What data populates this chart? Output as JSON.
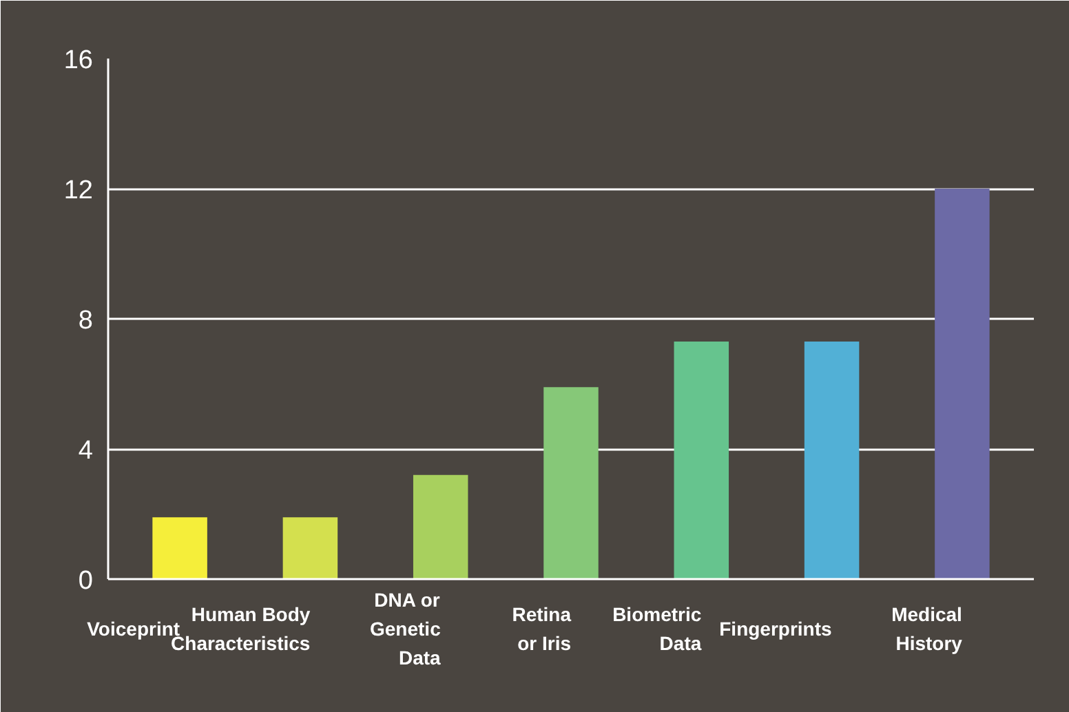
{
  "chart_data": {
    "type": "bar",
    "categories": [
      "Voiceprint",
      "Human Body\nCharacteristics",
      "DNA or\nGenetic\nData",
      "Retina\nor Iris",
      "Biometric\nData",
      "Fingerprints",
      "Medical\nHistory"
    ],
    "values": [
      1.9,
      1.9,
      3.2,
      5.9,
      7.3,
      7.3,
      12.0
    ],
    "colors": [
      "#f5ee3a",
      "#d4e04e",
      "#a8d05e",
      "#86c878",
      "#66c48e",
      "#52b0d6",
      "#6c6aa6"
    ],
    "ylim": [
      0,
      16
    ],
    "yticks": [
      0,
      4,
      8,
      12,
      16
    ],
    "grid": "y"
  }
}
